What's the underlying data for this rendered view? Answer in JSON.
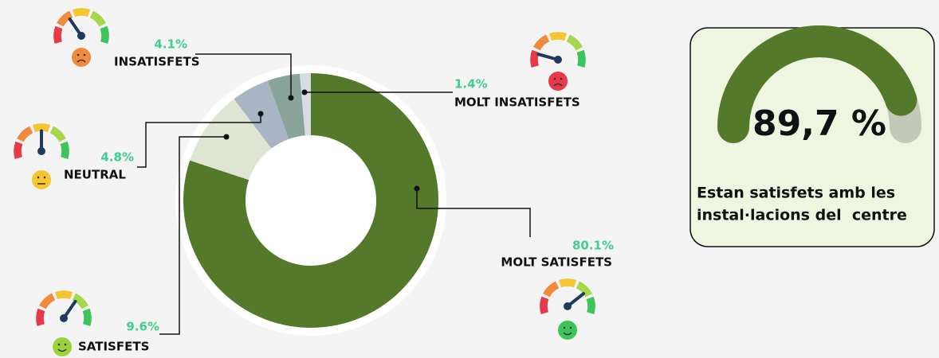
{
  "chart_data": {
    "type": "donut",
    "categories": [
      "MOLT SATISFETS",
      "SATISFETS",
      "NEUTRAL",
      "INSATISFETS",
      "MOLT INSATISFETS"
    ],
    "values": [
      80.1,
      9.6,
      4.8,
      4.1,
      1.4
    ],
    "value_labels": [
      "80.1%",
      "9.6%",
      "4.8%",
      "4.1%",
      "1.4%"
    ],
    "colors": [
      "#55792b",
      "#dfe5d3",
      "#a9b4c4",
      "#89a39b",
      "#d7dbe2"
    ]
  },
  "card": {
    "value": 89.7,
    "label": "89,7 %",
    "color": "#55792b",
    "caption": [
      "Estan satisfets amb les",
      "instal·lacions del  centre"
    ]
  }
}
